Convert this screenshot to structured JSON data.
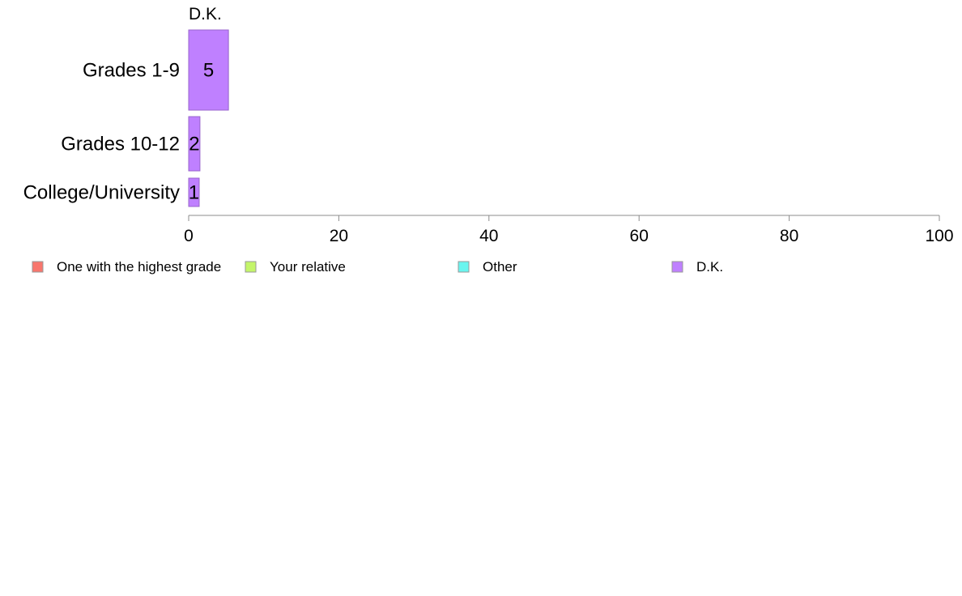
{
  "chart_data": {
    "type": "bar",
    "orientation": "horizontal",
    "stacked": true,
    "panel_title": "D.K.",
    "categories": [
      "Grades 1-9",
      "Grades 10-12",
      "College/University"
    ],
    "series": [
      {
        "name": "One with the highest grade",
        "color": "#f8766d",
        "values": [
          0,
          0,
          0
        ]
      },
      {
        "name": "Your relative",
        "color": "#c4f56a",
        "values": [
          0,
          0,
          0
        ]
      },
      {
        "name": "Other",
        "color": "#6af5ef",
        "values": [
          0,
          0,
          0
        ]
      },
      {
        "name": "D.K.",
        "color": "#bf80ff",
        "values": [
          5.3,
          1.5,
          1.4
        ]
      }
    ],
    "data_labels": [
      "5",
      "2",
      "1"
    ],
    "xlim": [
      0,
      100
    ],
    "xticks": [
      "0",
      "20",
      "40",
      "60",
      "80",
      "100"
    ],
    "grid": false,
    "legend_position": "bottom"
  }
}
